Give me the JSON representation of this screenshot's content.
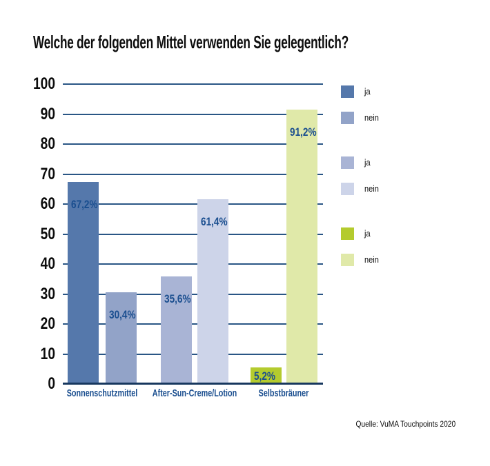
{
  "title": "Welche der folgenden Mittel verwenden Sie gelegentlich?",
  "source": "Quelle: VuMA Touchpoints 2020",
  "colors": {
    "gridline": "#2a5685",
    "baseline": "#17375e",
    "value_label": "#1a4e8f",
    "x_label": "#1a4e8f",
    "title_text": "#0d0d0d",
    "background": "#ffffff"
  },
  "legend": {
    "position": "right",
    "entries": [
      {
        "label": "ja",
        "color": "#5578ab",
        "group": "Sonnenschutzmittel"
      },
      {
        "label": "nein",
        "color": "#92a3c8",
        "group": "Sonnenschutzmittel"
      },
      {
        "label": "ja",
        "color": "#a9b4d5",
        "group": "After-Sun-Creme/Lotion"
      },
      {
        "label": "nein",
        "color": "#cdd4e9",
        "group": "After-Sun-Creme/Lotion"
      },
      {
        "label": "ja",
        "color": "#b4cb2e",
        "group": "Selbstbräuner"
      },
      {
        "label": "nein",
        "color": "#e0e9a9",
        "group": "Selbstbräuner"
      }
    ]
  },
  "chart_data": {
    "type": "bar",
    "title": "Welche der folgenden Mittel verwenden Sie gelegentlich?",
    "xlabel": "",
    "ylabel": "",
    "ylim": [
      0,
      100
    ],
    "yticks": [
      0,
      10,
      20,
      30,
      40,
      50,
      60,
      70,
      80,
      90,
      100
    ],
    "grid": true,
    "legend_position": "right",
    "categories": [
      "Sonnenschutzmittel",
      "After-Sun-Creme/Lotion",
      "Selbstbräuner"
    ],
    "groups": [
      {
        "category": "Sonnenschutzmittel",
        "bars": [
          {
            "series": "ja",
            "value": 67.2,
            "display": "67,2%",
            "color": "#5578ab"
          },
          {
            "series": "nein",
            "value": 30.4,
            "display": "30,4%",
            "color": "#92a3c8"
          }
        ]
      },
      {
        "category": "After-Sun-Creme/Lotion",
        "bars": [
          {
            "series": "ja",
            "value": 35.6,
            "display": "35,6%",
            "color": "#a9b4d5"
          },
          {
            "series": "nein",
            "value": 61.4,
            "display": "61,4%",
            "color": "#cdd4e9"
          }
        ]
      },
      {
        "category": "Selbstbräuner",
        "bars": [
          {
            "series": "ja",
            "value": 5.2,
            "display": "5,2%",
            "color": "#b4cb2e"
          },
          {
            "series": "nein",
            "value": 91.2,
            "display": "91,2%",
            "color": "#e0e9a9"
          }
        ]
      }
    ]
  }
}
